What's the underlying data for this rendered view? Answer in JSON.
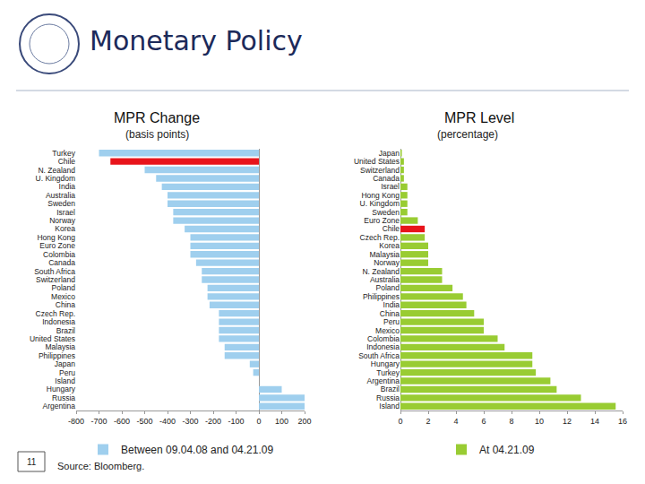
{
  "header": {
    "title": "Monetary Policy"
  },
  "page_number": "11",
  "source": "Source: Bloomberg.",
  "chart_data": [
    {
      "type": "bar",
      "orientation": "horizontal",
      "title": "MPR Change",
      "subtitle": "(basis points)",
      "categories": [
        "Turkey",
        "Chile",
        "N. Zealand",
        "U. Kingdom",
        "India",
        "Australia",
        "Sweden",
        "Israel",
        "Norway",
        "Korea",
        "Hong Kong",
        "Euro Zone",
        "Colombia",
        "Canada",
        "South Africa",
        "Switzerland",
        "Poland",
        "Mexico",
        "China",
        "Czech Rep.",
        "Indonesia",
        "Brazil",
        "United States",
        "Malaysia",
        "Philippines",
        "Japan",
        "Peru",
        "Island",
        "Hungary",
        "Russia",
        "Argentina"
      ],
      "series": [
        {
          "name": "Between 09.04.08 and 04.21.09",
          "color": "#9fcfee",
          "colors": [
            "#9fcfee",
            "#e8141b",
            "#9fcfee",
            "#9fcfee",
            "#9fcfee",
            "#9fcfee",
            "#9fcfee",
            "#9fcfee",
            "#9fcfee",
            "#9fcfee",
            "#9fcfee",
            "#9fcfee",
            "#9fcfee",
            "#9fcfee",
            "#9fcfee",
            "#9fcfee",
            "#9fcfee",
            "#9fcfee",
            "#9fcfee",
            "#9fcfee",
            "#9fcfee",
            "#9fcfee",
            "#9fcfee",
            "#9fcfee",
            "#9fcfee",
            "#9fcfee",
            "#9fcfee",
            "#9fcfee",
            "#9fcfee",
            "#9fcfee",
            "#9fcfee"
          ],
          "values": [
            -700,
            -650,
            -500,
            -450,
            -425,
            -400,
            -400,
            -375,
            -375,
            -325,
            -300,
            -300,
            -300,
            -275,
            -250,
            -250,
            -225,
            -225,
            -216,
            -175,
            -175,
            -175,
            -175,
            -150,
            -150,
            -40,
            -25,
            0,
            100,
            200,
            200
          ]
        }
      ],
      "xlim": [
        -800,
        200
      ],
      "xticks": [
        -800,
        -700,
        -600,
        -500,
        -400,
        -300,
        -200,
        -100,
        0,
        100,
        200
      ],
      "grid": false,
      "legend": "bottom"
    },
    {
      "type": "bar",
      "orientation": "horizontal",
      "title": "MPR Level",
      "subtitle": "(percentage)",
      "categories": [
        "Japan",
        "United States",
        "Switzerland",
        "Canada",
        "Israel",
        "Hong Kong",
        "U. Kingdom",
        "Sweden",
        "Euro Zone",
        "Chile",
        "Czech Rep.",
        "Korea",
        "Malaysia",
        "Norway",
        "N. Zealand",
        "Australia",
        "Poland",
        "Philippines",
        "India",
        "China",
        "Peru",
        "Mexico",
        "Colombia",
        "Indonesia",
        "South Africa",
        "Hungary",
        "Turkey",
        "Argentina",
        "Brazil",
        "Russia",
        "Island"
      ],
      "series": [
        {
          "name": "At 04.21.09",
          "color": "#99cc33",
          "colors": [
            "#99cc33",
            "#99cc33",
            "#99cc33",
            "#99cc33",
            "#99cc33",
            "#99cc33",
            "#99cc33",
            "#99cc33",
            "#99cc33",
            "#e8141b",
            "#99cc33",
            "#99cc33",
            "#99cc33",
            "#99cc33",
            "#99cc33",
            "#99cc33",
            "#99cc33",
            "#99cc33",
            "#99cc33",
            "#99cc33",
            "#99cc33",
            "#99cc33",
            "#99cc33",
            "#99cc33",
            "#99cc33",
            "#99cc33",
            "#99cc33",
            "#99cc33",
            "#99cc33",
            "#99cc33",
            "#99cc33"
          ],
          "values": [
            0.1,
            0.25,
            0.25,
            0.25,
            0.5,
            0.5,
            0.5,
            0.5,
            1.25,
            1.75,
            1.75,
            2,
            2,
            2,
            3,
            3,
            3.75,
            4.5,
            4.75,
            5.31,
            6,
            6,
            7,
            7.5,
            9.5,
            9.5,
            9.75,
            10.8,
            11.25,
            13,
            15.5
          ]
        }
      ],
      "xlim": [
        0,
        16
      ],
      "xticks": [
        0,
        2,
        4,
        6,
        8,
        10,
        12,
        14,
        16
      ],
      "grid": false,
      "legend": "bottom"
    }
  ]
}
